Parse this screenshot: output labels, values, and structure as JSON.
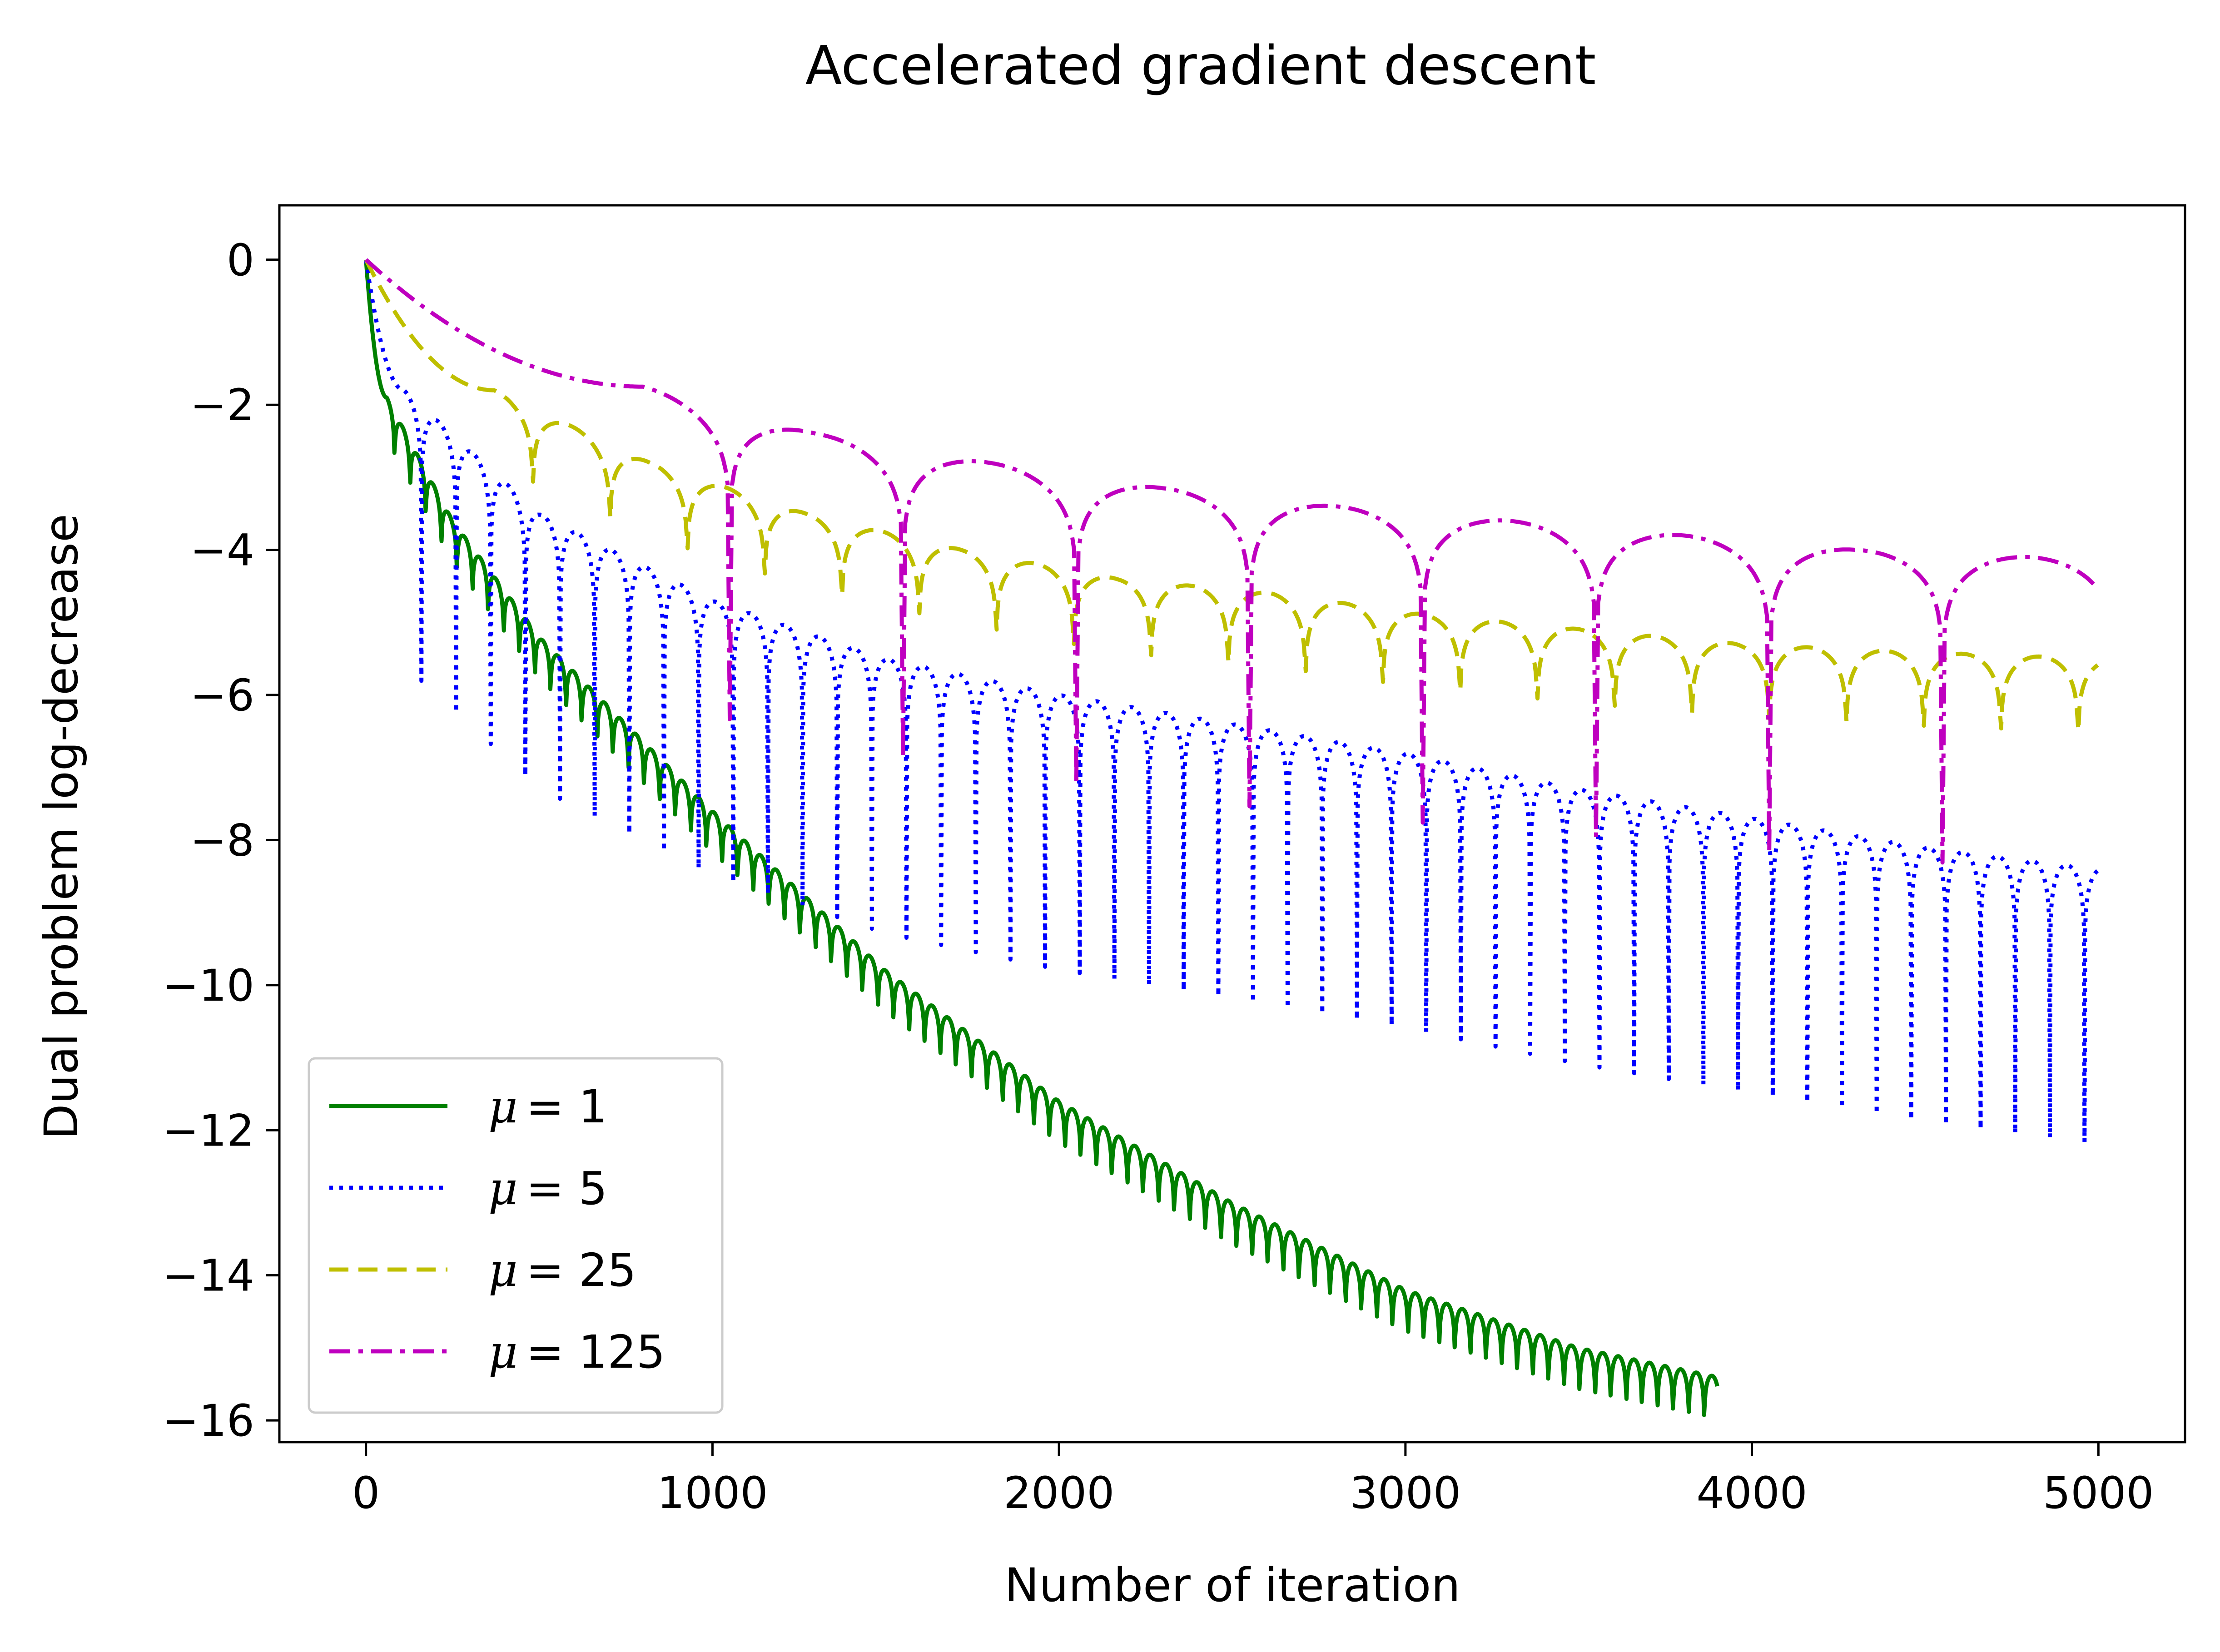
{
  "chart_data": {
    "type": "line",
    "title": "Accelerated gradient descent",
    "xlabel": "Number of iteration",
    "ylabel": "Dual problem log-decrease",
    "xlim": [
      -250,
      5250
    ],
    "ylim": [
      -16.3,
      0.75
    ],
    "xticks": [
      0,
      1000,
      2000,
      3000,
      4000,
      5000
    ],
    "yticks": [
      0,
      -2,
      -4,
      -6,
      -8,
      -10,
      -12,
      -14,
      -16
    ],
    "xtick_labels": [
      "0",
      "1000",
      "2000",
      "3000",
      "4000",
      "5000"
    ],
    "ytick_labels": [
      "0",
      "−2",
      "−4",
      "−6",
      "−8",
      "−10",
      "−12",
      "−14",
      "−16"
    ],
    "grid": false,
    "legend_position": "lower-left",
    "series": [
      {
        "name": "μ = 1",
        "legend_prefix": "μ",
        "legend_value": "= 1",
        "color": "#008000",
        "dash": "solid",
        "x_end": 3900,
        "period": 45,
        "envelope_x": [
          0,
          60,
          250,
          500,
          1000,
          1500,
          2000,
          2500,
          3000,
          3500,
          3900
        ],
        "envelope_y": [
          0,
          -1.9,
          -3.6,
          -5.2,
          -7.6,
          -9.8,
          -11.6,
          -13.0,
          -14.2,
          -15.0,
          -15.4
        ],
        "dip_depth": 2.4
      },
      {
        "name": "μ = 5",
        "legend_prefix": "μ",
        "legend_value": "= 5",
        "color": "#0000ff",
        "dash": "dotted",
        "x_end": 5000,
        "period": 100,
        "envelope_x": [
          0,
          110,
          500,
          1000,
          1500,
          2000,
          2500,
          3000,
          3500,
          4000,
          4500,
          5000
        ],
        "envelope_y": [
          0,
          -1.8,
          -3.5,
          -4.7,
          -5.5,
          -6.0,
          -6.4,
          -6.8,
          -7.3,
          -7.7,
          -8.1,
          -8.4
        ],
        "dip_depth": 4.0
      },
      {
        "name": "μ = 25",
        "legend_prefix": "μ",
        "legend_value": "= 25",
        "color": "#bfbf00",
        "dash": "dashed",
        "x_end": 5000,
        "period": 223,
        "envelope_x": [
          0,
          370,
          820,
          1270,
          1720,
          2170,
          2620,
          3070,
          3520,
          3970,
          4420,
          5000
        ],
        "envelope_y": [
          0,
          -1.8,
          -2.8,
          -3.5,
          -4.0,
          -4.4,
          -4.6,
          -4.9,
          -5.1,
          -5.3,
          -5.4,
          -5.5
        ],
        "dip_depth": 3.3
      },
      {
        "name": "μ = 125",
        "legend_prefix": "μ",
        "legend_value": "= 125",
        "color": "#bf00bf",
        "dash": "dashdot",
        "x_end": 5000,
        "period": 500,
        "envelope_x": [
          0,
          800,
          1300,
          1800,
          2300,
          2800,
          3300,
          3800,
          4300,
          4800,
          5000
        ],
        "envelope_y": [
          0,
          -1.75,
          -2.4,
          -2.8,
          -3.15,
          -3.4,
          -3.6,
          -3.8,
          -4.0,
          -4.1,
          -4.15
        ],
        "dip_depth": 4.5
      }
    ]
  }
}
